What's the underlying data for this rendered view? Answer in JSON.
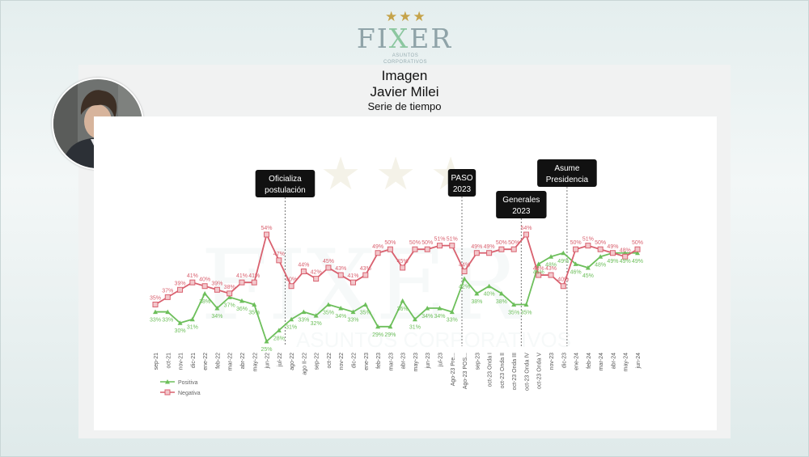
{
  "logo": {
    "stars": "★★★",
    "word_pre": "FI",
    "word_x": "X",
    "word_post": "ER",
    "subtitle": "ASUNTOS CORPORATIVOS"
  },
  "header": {
    "title": "Imagen",
    "subtitle": "Javier Milei",
    "caption": "Serie de tiempo"
  },
  "chart_data": {
    "type": "line",
    "x": [
      "sep-21",
      "oct-21",
      "nov-21",
      "dic-21",
      "ene-22",
      "feb-22",
      "mar-22",
      "abr-22",
      "may-22",
      "jun-22",
      "jul-22",
      "ago-22",
      "ago II-22",
      "sep-22",
      "oct-22",
      "nov-22",
      "dic-22",
      "ene-23",
      "feb-23",
      "mar-23",
      "abr-23",
      "may-23",
      "jun-23",
      "jul-23",
      "Ago-23 Pre...",
      "Ago-23 POS...",
      "sep-23",
      "oct-23 Onda I",
      "oct-23 Onda II",
      "oct-23 Onda III",
      "oct-23 Onda IV",
      "oct-23 Onda V",
      "nov-23",
      "dic-23",
      "ene-24",
      "feb-24",
      "mar-24",
      "abr-24",
      "may-24",
      "jun-24"
    ],
    "series": [
      {
        "name": "Positiva",
        "color": "#6dbf5b",
        "values": [
          33,
          33,
          30,
          31,
          38,
          34,
          37,
          36,
          35,
          25,
          28,
          31,
          33,
          32,
          35,
          34,
          33,
          35,
          29,
          29,
          36,
          31,
          34,
          34,
          33,
          42,
          38,
          40,
          38,
          35,
          35,
          46,
          48,
          49,
          46,
          45,
          48,
          49,
          49,
          49
        ]
      },
      {
        "name": "Negativa",
        "color": "#d9616f",
        "values": [
          35,
          37,
          39,
          41,
          40,
          39,
          38,
          41,
          41,
          54,
          47,
          40,
          44,
          42,
          45,
          43,
          41,
          43,
          49,
          50,
          45,
          50,
          50,
          51,
          51,
          44,
          49,
          49,
          50,
          50,
          54,
          43,
          43,
          40,
          50,
          51,
          50,
          49,
          48,
          50
        ]
      }
    ],
    "labels_positiva": [
      "33%",
      "33%",
      "30%",
      "31%",
      "38%",
      "34%",
      "37%",
      "36%",
      "35%",
      "25%",
      "28%",
      "31%",
      "33%",
      "32%",
      "35%",
      "34%",
      "33%",
      "35%",
      "29%",
      "29%",
      "36%",
      "31%",
      "34%",
      "34%",
      "33%",
      "42%",
      "38%",
      "40%",
      "38%",
      "35%",
      "35%",
      "46%",
      "48%",
      "49%",
      "46%",
      "45%",
      "48%",
      "49%",
      "49%",
      "49%"
    ],
    "labels_negativa": [
      "35%",
      "37%",
      "39%",
      "41%",
      "40%",
      "39%",
      "38%",
      "41%",
      "41%",
      "54%",
      "47%",
      "40%",
      "44%",
      "42%",
      "45%",
      "43%",
      "41%",
      "43%",
      "49%",
      "50%",
      "45%",
      "50%",
      "50%",
      "51%",
      "51%",
      "44%",
      "49%",
      "49%",
      "50%",
      "50%",
      "54%",
      "43%",
      "43%",
      "40%",
      "50%",
      "51%",
      "50%",
      "49%",
      "48%",
      "50%"
    ],
    "ylim": [
      20,
      60
    ],
    "annotations": [
      {
        "text": [
          "Oficializa",
          "postulación"
        ],
        "index": 10.5
      },
      {
        "text": [
          "PASO",
          "2023"
        ],
        "index": 24.8
      },
      {
        "text": [
          "Generales",
          "2023"
        ],
        "index": 29.6
      },
      {
        "text": [
          "Asume",
          "Presidencia"
        ],
        "index": 33.3
      }
    ],
    "legend_position": "bottom-left",
    "grid": false
  }
}
